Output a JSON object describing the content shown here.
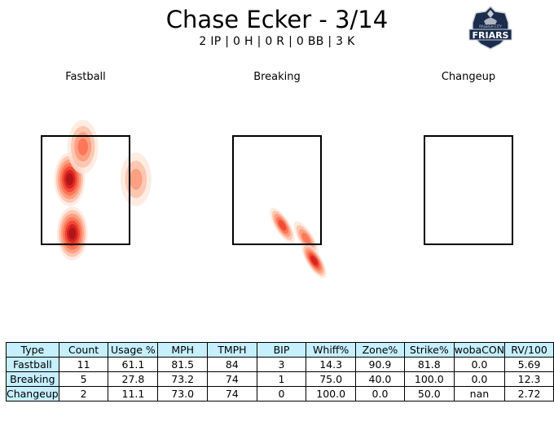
{
  "header": {
    "title": "Chase Ecker - 3/14",
    "subtitle": "2 IP | 0 H | 0 R | 0 BB | 3 K"
  },
  "logo": {
    "icon": "raleigh-friars-crest-icon",
    "small_text": "RALEIGH CITY",
    "text": "FRIARS",
    "navy": "#1c2c4c",
    "silver": "#c9ced6"
  },
  "chart_data": [
    {
      "type": "heatmap",
      "title": "Fastball",
      "colormap": "Reds",
      "density_peaks": [
        {
          "x": -0.3,
          "y": 2.7,
          "weight": 1.0
        },
        {
          "x": -0.25,
          "y": 1.7,
          "weight": 1.0
        },
        {
          "x": -0.05,
          "y": 3.3,
          "weight": 0.6
        },
        {
          "x": 0.95,
          "y": 2.7,
          "weight": 0.45
        }
      ]
    },
    {
      "type": "heatmap",
      "title": "Breaking",
      "colormap": "Reds",
      "density_peaks": [
        {
          "x": 0.1,
          "y": 1.85,
          "weight": 0.65
        },
        {
          "x": 0.55,
          "y": 1.6,
          "weight": 0.55
        },
        {
          "x": 0.7,
          "y": 1.2,
          "weight": 0.85
        }
      ]
    },
    {
      "type": "heatmap",
      "title": "Changeup",
      "colormap": "Reds",
      "density_peaks": []
    }
  ],
  "table": {
    "headers": [
      "Type",
      "Count",
      "Usage %",
      "MPH",
      "TMPH",
      "BIP",
      "Whiff%",
      "Zone%",
      "Strike%",
      "wobaCON",
      "RV/100"
    ],
    "rows": [
      [
        "Fastball",
        "11",
        "61.1",
        "81.5",
        "84",
        "3",
        "14.3",
        "90.9",
        "81.8",
        "0.0",
        "5.69"
      ],
      [
        "Breaking",
        "5",
        "27.8",
        "73.2",
        "74",
        "1",
        "75.0",
        "40.0",
        "100.0",
        "0.0",
        "12.3"
      ],
      [
        "Changeup",
        "2",
        "11.1",
        "73.0",
        "74",
        "0",
        "100.0",
        "0.0",
        "50.0",
        "nan",
        "2.72"
      ]
    ]
  }
}
